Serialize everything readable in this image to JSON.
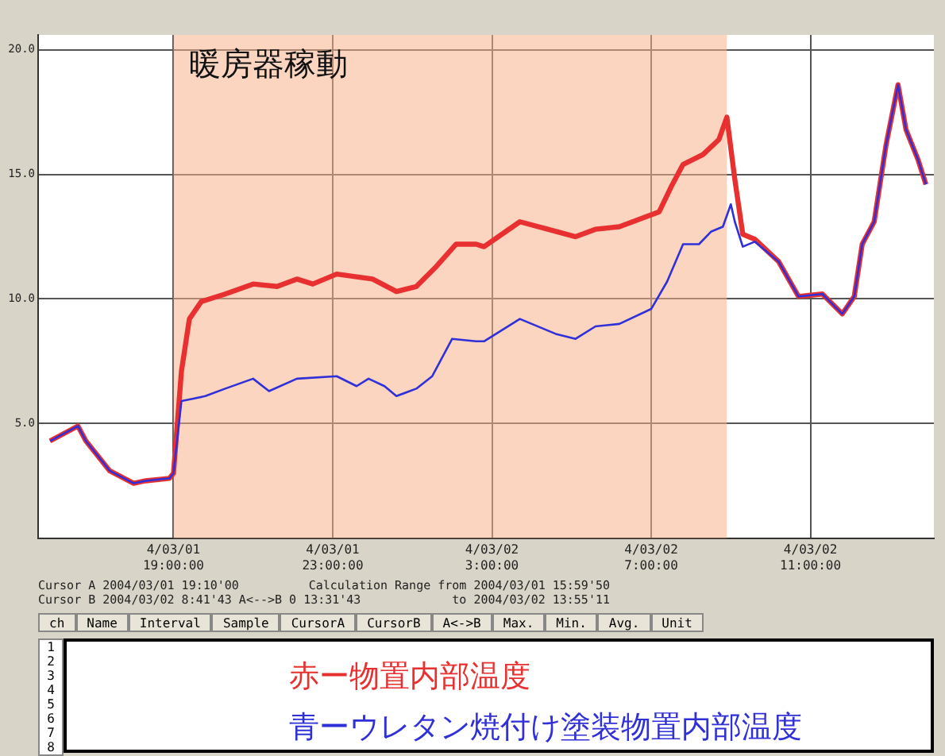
{
  "chart_data": {
    "type": "line",
    "xlim": [
      "2004-03-01T15:36",
      "2004-03-02T14:06"
    ],
    "xticks": [
      {
        "value": "2004-03-01T19:00",
        "label": "4/03/01 19:00:00"
      },
      {
        "value": "2004-03-01T23:00",
        "label": "4/03/01 23:00:00"
      },
      {
        "value": "2004-03-02T03:00",
        "label": "4/03/02 3:00:00"
      },
      {
        "value": "2004-03-02T07:00",
        "label": "4/03/02 7:00:00"
      },
      {
        "value": "2004-03-02T11:00",
        "label": "4/03/02 11:00:00"
      }
    ],
    "ylim": [
      0.4,
      20.6
    ],
    "yticks": [
      {
        "value": 5,
        "label": "5.0"
      },
      {
        "value": 10,
        "label": "10.0"
      },
      {
        "value": 15,
        "label": "15.0"
      },
      {
        "value": 20,
        "label": "20.0"
      }
    ],
    "grid": true,
    "legend": "bottom",
    "marker": "none",
    "line_style": "solid",
    "bands": [
      {
        "axis": "x",
        "from": "2004-03-01T19:00",
        "to": "2004-03-02T08:54",
        "label": "暖房器稼動",
        "color": "#f7b38c"
      }
    ],
    "series": [
      {
        "name": "赤ー物置内部温度",
        "color": "#e83030",
        "x": [
          "2004-03-01T15:54",
          "2004-03-01T16:36",
          "2004-03-01T16:48",
          "2004-03-01T17:24",
          "2004-03-01T18:00",
          "2004-03-01T18:18",
          "2004-03-01T18:54",
          "2004-03-01T19:00",
          "2004-03-01T19:12",
          "2004-03-01T19:24",
          "2004-03-01T19:42",
          "2004-03-01T20:18",
          "2004-03-01T21:00",
          "2004-03-01T21:36",
          "2004-03-01T22:06",
          "2004-03-01T22:30",
          "2004-03-01T23:06",
          "2004-03-02T00:00",
          "2004-03-02T00:36",
          "2004-03-02T01:06",
          "2004-03-02T01:36",
          "2004-03-02T02:06",
          "2004-03-02T02:36",
          "2004-03-02T02:48",
          "2004-03-02T03:42",
          "2004-03-02T04:24",
          "2004-03-02T05:06",
          "2004-03-02T05:36",
          "2004-03-02T06:12",
          "2004-03-02T07:12",
          "2004-03-02T07:30",
          "2004-03-02T07:48",
          "2004-03-02T08:18",
          "2004-03-02T08:42",
          "2004-03-02T08:54",
          "2004-03-02T09:06",
          "2004-03-02T09:18",
          "2004-03-02T09:36",
          "2004-03-02T10:12",
          "2004-03-02T10:42",
          "2004-03-02T11:18",
          "2004-03-02T11:48",
          "2004-03-02T12:06",
          "2004-03-02T12:18",
          "2004-03-02T12:36",
          "2004-03-02T12:54",
          "2004-03-02T13:12",
          "2004-03-02T13:24",
          "2004-03-02T13:42",
          "2004-03-02T13:54"
        ],
        "values": [
          4.3,
          4.9,
          4.3,
          3.1,
          2.6,
          2.7,
          2.8,
          3.0,
          7.1,
          9.2,
          9.9,
          10.2,
          10.6,
          10.5,
          10.8,
          10.6,
          11.0,
          10.8,
          10.3,
          10.5,
          11.3,
          12.2,
          12.2,
          12.1,
          13.1,
          12.8,
          12.5,
          12.8,
          12.9,
          13.5,
          14.5,
          15.4,
          15.8,
          16.4,
          17.3,
          14.8,
          12.6,
          12.4,
          11.5,
          10.1,
          10.2,
          9.4,
          10.1,
          12.2,
          13.1,
          16.2,
          18.6,
          16.8,
          15.6,
          14.6
        ]
      },
      {
        "name": "青ーウレタン焼付け塗装物置内部温度",
        "color": "#3030d8",
        "x": [
          "2004-03-01T15:54",
          "2004-03-01T16:36",
          "2004-03-01T16:48",
          "2004-03-01T17:24",
          "2004-03-01T18:00",
          "2004-03-01T18:18",
          "2004-03-01T18:54",
          "2004-03-01T19:00",
          "2004-03-01T19:12",
          "2004-03-01T19:30",
          "2004-03-01T19:48",
          "2004-03-01T20:18",
          "2004-03-01T21:00",
          "2004-03-01T21:24",
          "2004-03-01T22:06",
          "2004-03-01T23:06",
          "2004-03-01T23:36",
          "2004-03-01T23:54",
          "2004-03-02T00:18",
          "2004-03-02T00:36",
          "2004-03-02T01:06",
          "2004-03-02T01:30",
          "2004-03-02T02:00",
          "2004-03-02T02:36",
          "2004-03-02T02:48",
          "2004-03-02T03:42",
          "2004-03-02T04:36",
          "2004-03-02T05:06",
          "2004-03-02T05:36",
          "2004-03-02T06:12",
          "2004-03-02T07:00",
          "2004-03-02T07:24",
          "2004-03-02T07:48",
          "2004-03-02T08:12",
          "2004-03-02T08:30",
          "2004-03-02T08:48",
          "2004-03-02T09:00",
          "2004-03-02T09:06",
          "2004-03-02T09:18",
          "2004-03-02T09:36",
          "2004-03-02T10:12",
          "2004-03-02T10:42",
          "2004-03-02T11:18",
          "2004-03-02T11:48",
          "2004-03-02T12:06",
          "2004-03-02T12:18",
          "2004-03-02T12:36",
          "2004-03-02T12:54",
          "2004-03-02T13:12",
          "2004-03-02T13:24",
          "2004-03-02T13:42",
          "2004-03-02T13:54"
        ],
        "values": [
          4.3,
          4.9,
          4.3,
          3.1,
          2.6,
          2.7,
          2.8,
          3.0,
          5.9,
          6.0,
          6.1,
          6.4,
          6.8,
          6.3,
          6.8,
          6.9,
          6.5,
          6.8,
          6.5,
          6.1,
          6.4,
          6.9,
          8.4,
          8.3,
          8.3,
          9.2,
          8.6,
          8.4,
          8.9,
          9.0,
          9.6,
          10.7,
          12.2,
          12.2,
          12.7,
          12.9,
          13.8,
          13.1,
          12.1,
          12.3,
          11.5,
          10.1,
          10.2,
          9.4,
          10.1,
          12.2,
          13.1,
          16.2,
          18.6,
          16.8,
          15.6,
          14.6
        ]
      }
    ],
    "annotations": [
      "Cursor A 2004/03/01 19:10'00",
      "Calculation Range from 2004/03/01 15:59'50",
      "Cursor B 2004/03/02 8:41'43   A<-->B 0 13:31'43",
      "to 2004/03/02 13:55'11",
      "ch",
      "Name",
      "Interval",
      "Sample",
      "CursorA",
      "CursorB",
      "A<->B",
      "Max.",
      "Min.",
      "Avg.",
      "Unit",
      "1",
      "2",
      "3",
      "4",
      "5",
      "6",
      "7",
      "8"
    ]
  }
}
